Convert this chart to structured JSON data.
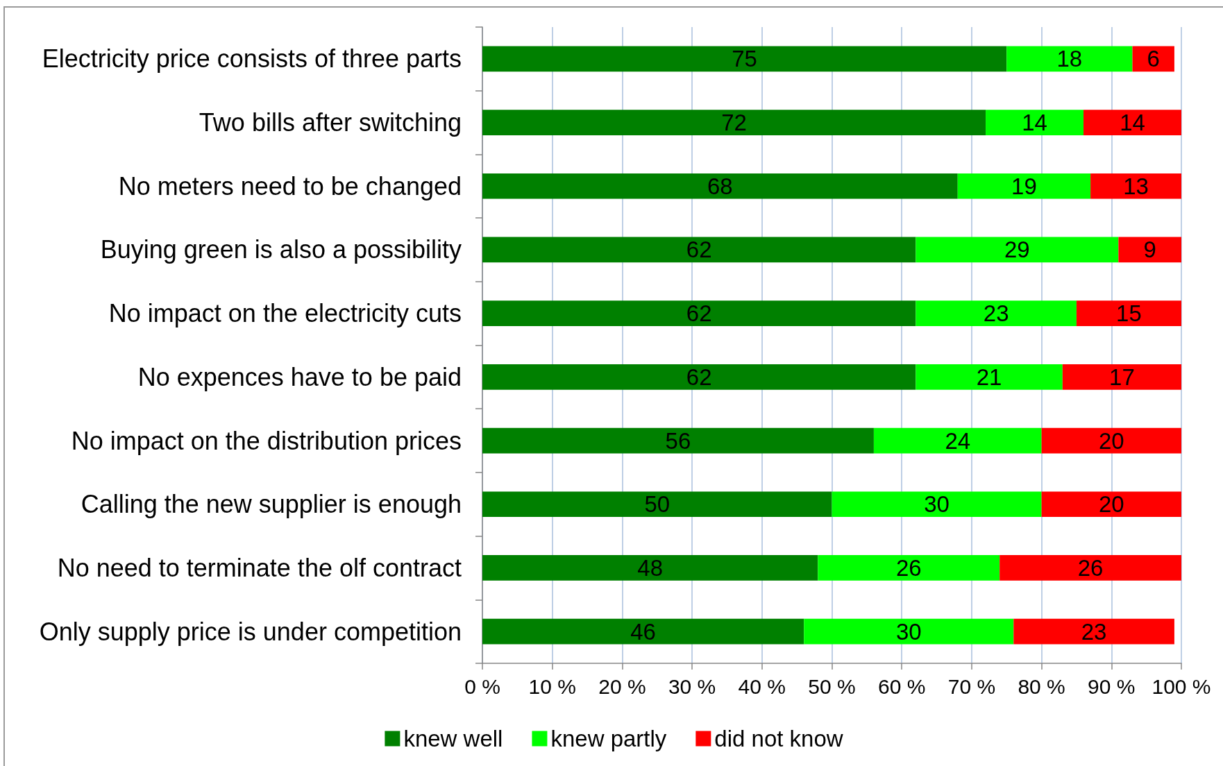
{
  "chart_data": {
    "type": "bar",
    "orientation": "horizontal",
    "stacked": true,
    "categories": [
      "Electricity price consists of three parts",
      "Two bills after switching",
      "No meters need to be changed",
      "Buying green is also a possibility",
      "No impact on the electricity cuts",
      "No expences have to be paid",
      "No impact on the distribution prices",
      "Calling the new supplier is enough",
      "No need to terminate the olf contract",
      "Only supply price is under competition"
    ],
    "series": [
      {
        "name": "knew well",
        "color": "#008000",
        "values": [
          75,
          72,
          68,
          62,
          62,
          62,
          56,
          50,
          48,
          46
        ]
      },
      {
        "name": "knew partly",
        "color": "#00ff00",
        "values": [
          18,
          14,
          19,
          29,
          23,
          21,
          24,
          30,
          26,
          30
        ]
      },
      {
        "name": "did not know",
        "color": "#ff0000",
        "values": [
          6,
          14,
          13,
          9,
          15,
          17,
          20,
          20,
          26,
          23
        ]
      }
    ],
    "xlim": [
      0,
      100
    ],
    "xticks": [
      {
        "value": 0,
        "label": "0 %"
      },
      {
        "value": 10,
        "label": "10 %"
      },
      {
        "value": 20,
        "label": "20 %"
      },
      {
        "value": 30,
        "label": "30 %"
      },
      {
        "value": 40,
        "label": "40 %"
      },
      {
        "value": 50,
        "label": "50 %"
      },
      {
        "value": 60,
        "label": "60 %"
      },
      {
        "value": 70,
        "label": "70 %"
      },
      {
        "value": 80,
        "label": "80 %"
      },
      {
        "value": 90,
        "label": "90 %"
      },
      {
        "value": 100,
        "label": "100 %"
      }
    ],
    "grid": "x",
    "legend": "bottom",
    "data_labels": true
  }
}
